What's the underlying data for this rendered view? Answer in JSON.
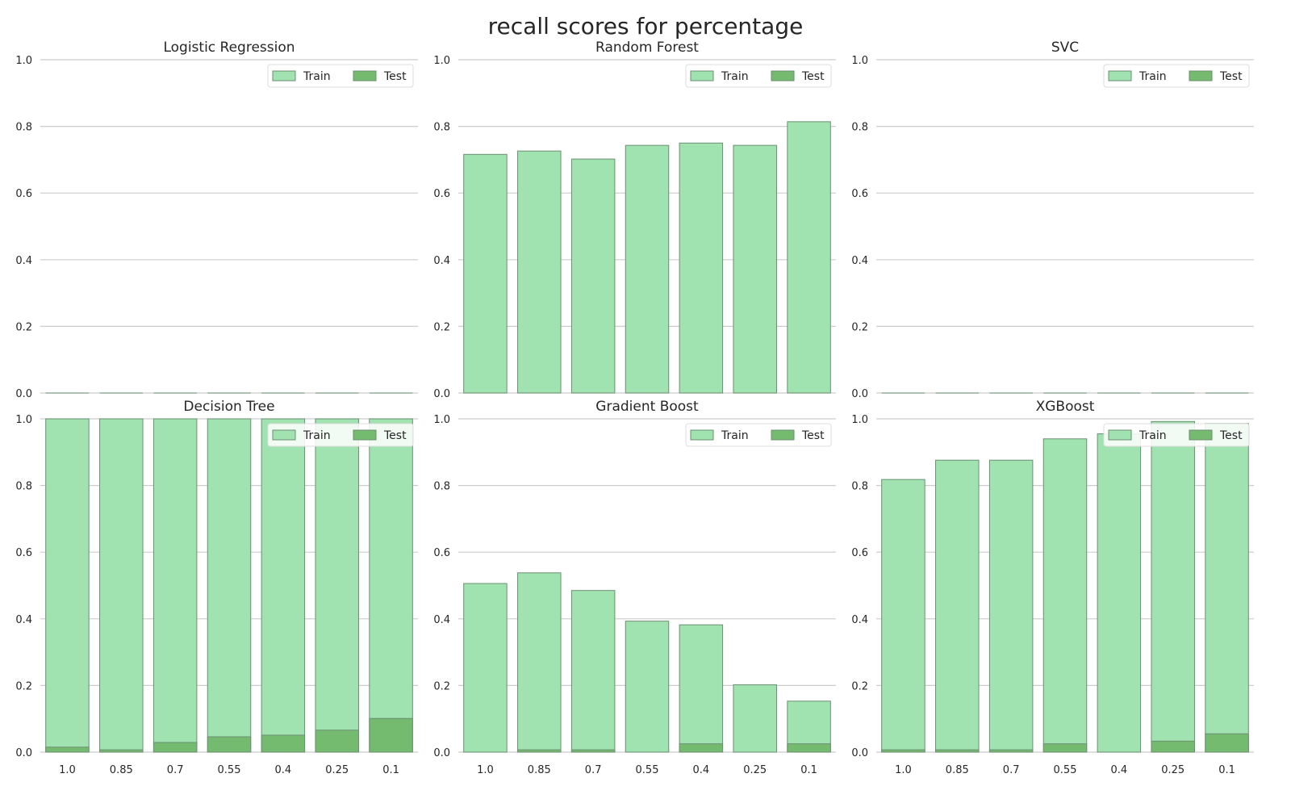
{
  "figure": {
    "title": "recall scores for percentage",
    "colors": {
      "train": "#a1e3b0",
      "test": "#74bb6f",
      "edge": "#6b8f72",
      "grid": "#cccccc",
      "text": "#262626"
    },
    "legend": {
      "train_label": "Train",
      "test_label": "Test",
      "placement": "upper right",
      "columns": 2
    }
  },
  "chart_data": [
    {
      "type": "bar",
      "title": "Logistic Regression",
      "categories": [
        "1.0",
        "0.85",
        "0.7",
        "0.55",
        "0.4",
        "0.25",
        "0.1"
      ],
      "series": [
        {
          "name": "Train",
          "values": [
            0,
            0,
            0,
            0,
            0,
            0,
            0
          ]
        },
        {
          "name": "Test",
          "values": [
            0,
            0,
            0,
            0,
            0,
            0,
            0
          ]
        }
      ],
      "ylim": [
        0,
        1
      ],
      "yticks": [
        "0.0",
        "0.2",
        "0.4",
        "0.6",
        "0.8",
        "1.0"
      ],
      "grid": true,
      "xticklabels_shown": false
    },
    {
      "type": "bar",
      "title": "Random Forest",
      "categories": [
        "1.0",
        "0.85",
        "0.7",
        "0.55",
        "0.4",
        "0.25",
        "0.1"
      ],
      "series": [
        {
          "name": "Train",
          "values": [
            0.716,
            0.726,
            0.702,
            0.743,
            0.75,
            0.743,
            0.814
          ]
        },
        {
          "name": "Test",
          "values": [
            0,
            0,
            0,
            0,
            0,
            0,
            0
          ]
        }
      ],
      "ylim": [
        0,
        1
      ],
      "yticks": [
        "0.0",
        "0.2",
        "0.4",
        "0.6",
        "0.8",
        "1.0"
      ],
      "grid": true,
      "xticklabels_shown": false
    },
    {
      "type": "bar",
      "title": "SVC",
      "categories": [
        "1.0",
        "0.85",
        "0.7",
        "0.55",
        "0.4",
        "0.25",
        "0.1"
      ],
      "series": [
        {
          "name": "Train",
          "values": [
            0,
            0,
            0,
            0,
            0,
            0,
            0
          ]
        },
        {
          "name": "Test",
          "values": [
            0,
            0,
            0,
            0,
            0,
            0,
            0
          ]
        }
      ],
      "ylim": [
        0,
        1
      ],
      "yticks": [
        "0.0",
        "0.2",
        "0.4",
        "0.6",
        "0.8",
        "1.0"
      ],
      "grid": true,
      "xticklabels_shown": false
    },
    {
      "type": "bar",
      "title": "Decision Tree",
      "categories": [
        "1.0",
        "0.85",
        "0.7",
        "0.55",
        "0.4",
        "0.25",
        "0.1"
      ],
      "series": [
        {
          "name": "Train",
          "values": [
            1.0,
            1.0,
            1.0,
            1.0,
            1.0,
            1.0,
            1.0
          ]
        },
        {
          "name": "Test",
          "values": [
            0.015,
            0.007,
            0.029,
            0.046,
            0.051,
            0.066,
            0.101
          ]
        }
      ],
      "ylim": [
        0,
        1
      ],
      "yticks": [
        "0.0",
        "0.2",
        "0.4",
        "0.6",
        "0.8",
        "1.0"
      ],
      "grid": true,
      "xticklabels_shown": true
    },
    {
      "type": "bar",
      "title": "Gradient Boost",
      "categories": [
        "1.0",
        "0.85",
        "0.7",
        "0.55",
        "0.4",
        "0.25",
        "0.1"
      ],
      "series": [
        {
          "name": "Train",
          "values": [
            0.506,
            0.538,
            0.485,
            0.393,
            0.382,
            0.202,
            0.153
          ]
        },
        {
          "name": "Test",
          "values": [
            0,
            0.007,
            0.007,
            0,
            0.025,
            0,
            0.025
          ]
        }
      ],
      "ylim": [
        0,
        1
      ],
      "yticks": [
        "0.0",
        "0.2",
        "0.4",
        "0.6",
        "0.8",
        "1.0"
      ],
      "grid": true,
      "xticklabels_shown": true
    },
    {
      "type": "bar",
      "title": "XGBoost",
      "categories": [
        "1.0",
        "0.85",
        "0.7",
        "0.55",
        "0.4",
        "0.25",
        "0.1"
      ],
      "series": [
        {
          "name": "Train",
          "values": [
            0.818,
            0.876,
            0.876,
            0.94,
            0.955,
            0.992,
            0.986
          ]
        },
        {
          "name": "Test",
          "values": [
            0.007,
            0.007,
            0.007,
            0.025,
            0,
            0.033,
            0.055
          ]
        }
      ],
      "ylim": [
        0,
        1
      ],
      "yticks": [
        "0.0",
        "0.2",
        "0.4",
        "0.6",
        "0.8",
        "1.0"
      ],
      "grid": true,
      "xticklabels_shown": true
    }
  ]
}
